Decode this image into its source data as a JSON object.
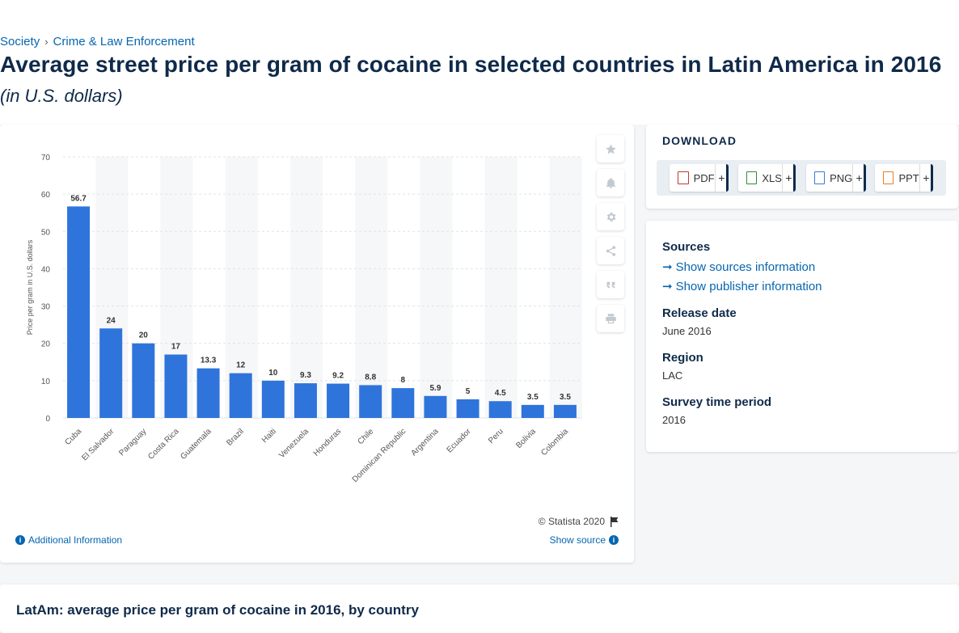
{
  "breadcrumb": {
    "items": [
      "Society",
      "Crime & Law Enforcement"
    ],
    "sep": "›"
  },
  "header": {
    "title": "Average street price per gram of cocaine in selected countries in Latin America in 2016",
    "subtitle": "(in U.S. dollars)"
  },
  "chart": {
    "copyright": "© Statista 2020",
    "additional_info": "Additional Information",
    "show_source": "Show source"
  },
  "chart_data": {
    "type": "bar",
    "categories": [
      "Cuba",
      "El Salvador",
      "Paraguay",
      "Costa Rica",
      "Guatemala",
      "Brazil",
      "Haiti",
      "Venezuela",
      "Honduras",
      "Chile",
      "Dominican Republic",
      "Argentina",
      "Ecuador",
      "Peru",
      "Bolivia",
      "Colombia"
    ],
    "values": [
      56.7,
      24,
      20,
      17,
      13.3,
      12,
      10,
      9.3,
      9.2,
      8.8,
      8,
      5.9,
      5,
      4.5,
      3.5,
      3.5
    ],
    "value_labels": [
      "56.7",
      "24",
      "20",
      "17",
      "13.3",
      "12",
      "10",
      "9.3",
      "9.2",
      "8.8",
      "8",
      "5.9",
      "5",
      "4.5",
      "3.5",
      "3.5"
    ],
    "ylabel": "Price per gram in U.S. dollars",
    "ylim": [
      0,
      70
    ],
    "yticks": [
      0,
      10,
      20,
      30,
      40,
      50,
      60,
      70
    ],
    "ytick_labels": [
      "0",
      "10",
      "20",
      "30",
      "40",
      "50",
      "60",
      "70"
    ],
    "grid": true,
    "bar_color": "#2f74db"
  },
  "download": {
    "title": "DOWNLOAD",
    "buttons": [
      {
        "label": "PDF",
        "plus": "+"
      },
      {
        "label": "XLS",
        "plus": "+"
      },
      {
        "label": "PNG",
        "plus": "+"
      },
      {
        "label": "PPT",
        "plus": "+"
      }
    ]
  },
  "meta": {
    "sources_h": "Sources",
    "show_sources": "Show sources information",
    "show_publisher": "Show publisher information",
    "release_h": "Release date",
    "release_v": "June 2016",
    "region_h": "Region",
    "region_v": "LAC",
    "survey_h": "Survey time period",
    "survey_v": "2016"
  },
  "bottom": {
    "title": "LatAm: average price per gram of cocaine in 2016, by country"
  },
  "colors": {
    "accent": "#0666b0",
    "navy": "#0f2a4a",
    "bar": "#2f74db"
  }
}
